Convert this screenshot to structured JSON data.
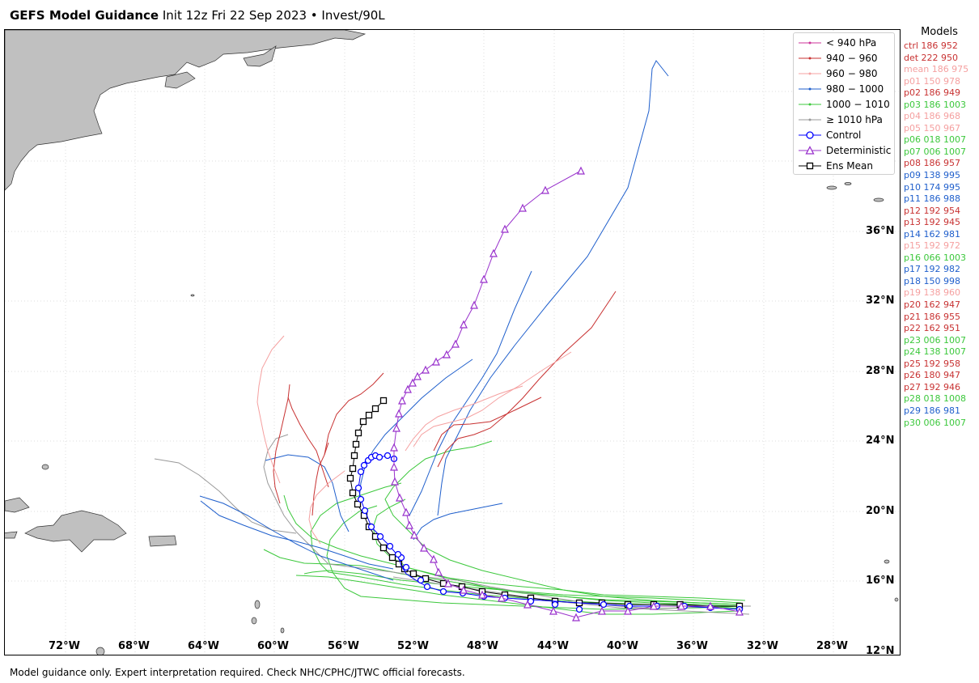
{
  "header": {
    "title_main": "GEFS Model Guidance",
    "title_rest": " Init 12z Fri 22 Sep 2023 • Invest/90L"
  },
  "footer": {
    "note": "Model guidance only. Expert interpretation required. Check NHC/CPHC/JTWC official forecasts."
  },
  "colors": {
    "lt940": "#cc3399",
    "c940": "#c83232",
    "c960": "#f5a0a0",
    "c980": "#1f5fcc",
    "c1000": "#3cc83c",
    "c1010": "#999999",
    "control": "#0000ff",
    "deterministic": "#9932cc",
    "ens_mean": "#000000",
    "land": "#c0c0c0"
  },
  "axes": {
    "lat_labels": [
      "36°N",
      "32°N",
      "28°N",
      "24°N",
      "20°N",
      "16°N",
      "12°N"
    ],
    "lon_labels": [
      "72°W",
      "68°W",
      "64°W",
      "60°W",
      "56°W",
      "52°W",
      "48°W",
      "44°W",
      "40°W",
      "36°W",
      "32°W",
      "28°W"
    ]
  },
  "legend": {
    "items": [
      {
        "label": "< 940 hPa",
        "key": "lt940"
      },
      {
        "label": "940 − 960",
        "key": "c940"
      },
      {
        "label": "960 − 980",
        "key": "c960"
      },
      {
        "label": "980 − 1000",
        "key": "c980"
      },
      {
        "label": "1000 − 1010",
        "key": "c1000"
      },
      {
        "label": "≥ 1010 hPa",
        "key": "c1010"
      },
      {
        "label": "Control",
        "key": "control"
      },
      {
        "label": "Deterministic",
        "key": "deterministic"
      },
      {
        "label": "Ens Mean",
        "key": "ens_mean"
      }
    ]
  },
  "models": {
    "title": "Models",
    "items": [
      {
        "text": "ctrl 186 952",
        "color": "#c83232"
      },
      {
        "text": "det 222 950",
        "color": "#c83232"
      },
      {
        "text": "mean 186 975",
        "color": "#f5a0a0"
      },
      {
        "text": "p01 150 978",
        "color": "#f5a0a0"
      },
      {
        "text": "p02 186 949",
        "color": "#c83232"
      },
      {
        "text": "p03 186 1003",
        "color": "#3cc83c"
      },
      {
        "text": "p04 186 968",
        "color": "#f5a0a0"
      },
      {
        "text": "p05 150 967",
        "color": "#f5a0a0"
      },
      {
        "text": "p06 018 1007",
        "color": "#3cc83c"
      },
      {
        "text": "p07 006 1007",
        "color": "#3cc83c"
      },
      {
        "text": "p08 186 957",
        "color": "#c83232"
      },
      {
        "text": "p09 138 995",
        "color": "#1f5fcc"
      },
      {
        "text": "p10 174 995",
        "color": "#1f5fcc"
      },
      {
        "text": "p11 186 988",
        "color": "#1f5fcc"
      },
      {
        "text": "p12 192 954",
        "color": "#c83232"
      },
      {
        "text": "p13 192 945",
        "color": "#c83232"
      },
      {
        "text": "p14 162 981",
        "color": "#1f5fcc"
      },
      {
        "text": "p15 192 972",
        "color": "#f5a0a0"
      },
      {
        "text": "p16 066 1003",
        "color": "#3cc83c"
      },
      {
        "text": "p17 192 982",
        "color": "#1f5fcc"
      },
      {
        "text": "p18 150 998",
        "color": "#1f5fcc"
      },
      {
        "text": "p19 138 960",
        "color": "#f5a0a0"
      },
      {
        "text": "p20 162 947",
        "color": "#c83232"
      },
      {
        "text": "p21 186 955",
        "color": "#c83232"
      },
      {
        "text": "p22 162 951",
        "color": "#c83232"
      },
      {
        "text": "p23 006 1007",
        "color": "#3cc83c"
      },
      {
        "text": "p24 138 1007",
        "color": "#3cc83c"
      },
      {
        "text": "p25 192 958",
        "color": "#c83232"
      },
      {
        "text": "p26 180 947",
        "color": "#c83232"
      },
      {
        "text": "p27 192 946",
        "color": "#c83232"
      },
      {
        "text": "p28 018 1008",
        "color": "#3cc83c"
      },
      {
        "text": "p29 186 981",
        "color": "#1f5fcc"
      },
      {
        "text": "p30 006 1007",
        "color": "#3cc83c"
      }
    ]
  }
}
